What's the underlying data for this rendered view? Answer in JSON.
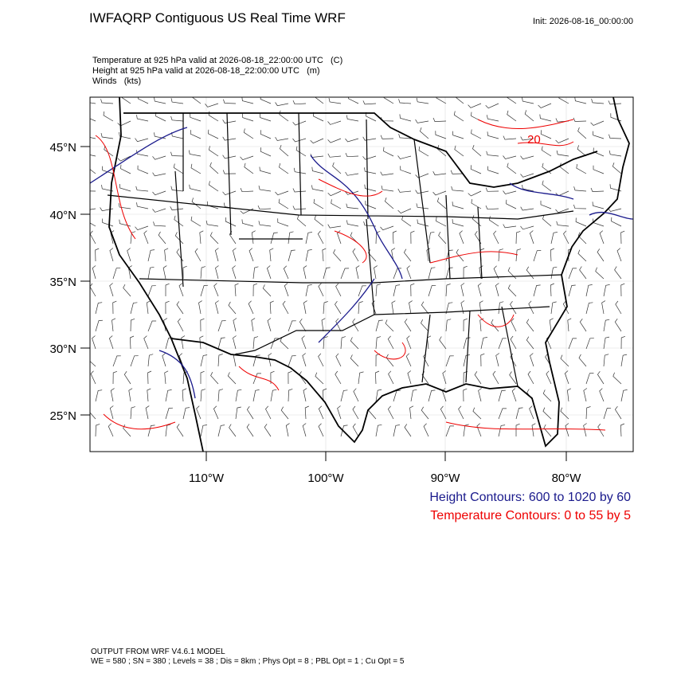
{
  "header": {
    "title": "IWFAQRP Contiguous US Real Time WRF",
    "init": "Init: 2026-08-16_00:00:00"
  },
  "fields": [
    "Temperature at 925 hPa valid at 2026-08-18_22:00:00 UTC   (C)",
    "Height at 925 hPa valid at 2026-08-18_22:00:00 UTC   (m)",
    "Winds   (kts)"
  ],
  "map": {
    "lat_labels": [
      "45°N",
      "40°N",
      "35°N",
      "30°N",
      "25°N"
    ],
    "lon_labels": [
      "110°W",
      "100°W",
      "90°W",
      "80°W"
    ],
    "contour_labels": [
      "20"
    ]
  },
  "legend": {
    "height": "Height Contours: 600 to 1020 by 60",
    "temperature": "Temperature Contours: 0 to 55 by 5"
  },
  "footer": {
    "model": "OUTPUT FROM WRF V4.6.1 MODEL",
    "settings": "WE = 580 ; SN = 380 ; Levels = 38 ; Dis = 8km ; Phys Opt = 8 ; PBL Opt = 1 ; Cu Opt = 5"
  }
}
